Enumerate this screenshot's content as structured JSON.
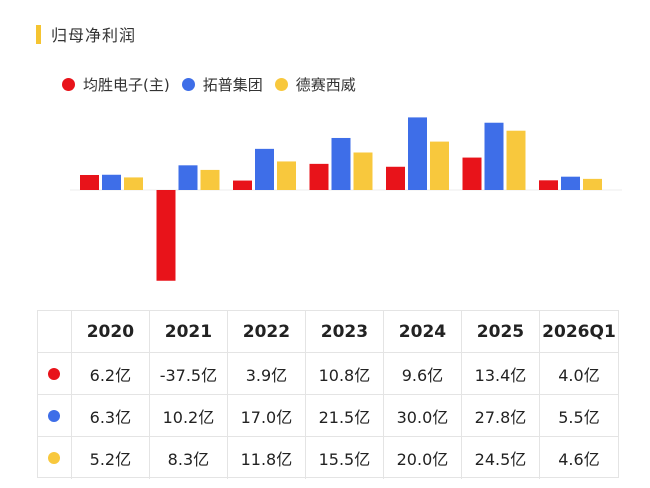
{
  "header": {
    "title": "归母净利润",
    "accent": "#f5c431"
  },
  "legend": [
    {
      "label": "均胜电子(主)",
      "color": "#e8131a"
    },
    {
      "label": "拓普集团",
      "color": "#3e6ee8"
    },
    {
      "label": "德赛西威",
      "color": "#f8c83d"
    }
  ],
  "chart_data": {
    "type": "bar",
    "categories": [
      "2020",
      "2021",
      "2022",
      "2023",
      "2024",
      "2025",
      "2026Q1"
    ],
    "series": [
      {
        "name": "均胜电子(主)",
        "values": [
          6.2,
          -37.5,
          3.9,
          10.8,
          9.6,
          13.4,
          4.0
        ],
        "color": "#e8131a"
      },
      {
        "name": "拓普集团",
        "values": [
          6.3,
          10.2,
          17.0,
          21.5,
          30.0,
          27.8,
          5.5
        ],
        "color": "#3e6ee8"
      },
      {
        "name": "德赛西威",
        "values": [
          5.2,
          8.3,
          11.8,
          15.5,
          20.0,
          24.5,
          4.6
        ],
        "color": "#f8c83d"
      }
    ],
    "unit": "亿"
  },
  "table": {
    "headers": [
      "2020",
      "2021",
      "2022",
      "2023",
      "2024",
      "2025",
      "2026Q1"
    ],
    "rows": [
      {
        "color": "#e8131a",
        "cells": [
          "6.2亿",
          "-37.5亿",
          "3.9亿",
          "10.8亿",
          "9.6亿",
          "13.4亿",
          "4.0亿"
        ]
      },
      {
        "color": "#3e6ee8",
        "cells": [
          "6.3亿",
          "10.2亿",
          "17.0亿",
          "21.5亿",
          "30.0亿",
          "27.8亿",
          "5.5亿"
        ]
      },
      {
        "color": "#f8c83d",
        "cells": [
          "5.2亿",
          "8.3亿",
          "11.8亿",
          "15.5亿",
          "20.0亿",
          "24.5亿",
          "4.6亿"
        ]
      }
    ]
  }
}
